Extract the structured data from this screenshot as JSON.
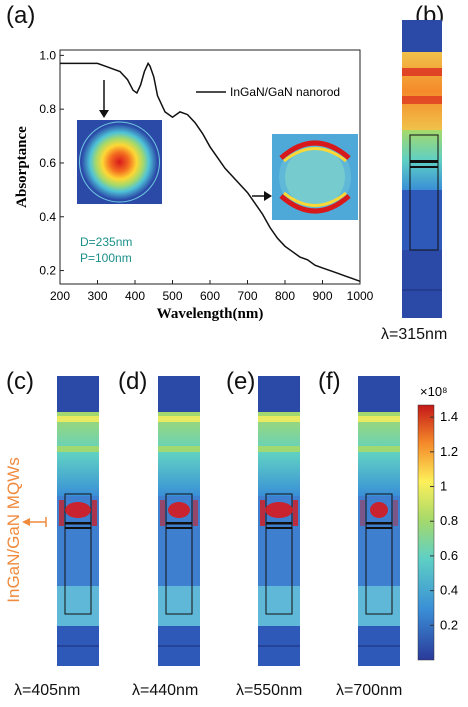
{
  "labels": {
    "a": "(a)",
    "b": "(b)",
    "c": "(c)",
    "d": "(d)",
    "e": "(e)",
    "f": "(f)"
  },
  "lambda_labels": {
    "b": "λ=315nm",
    "c": "λ=405nm",
    "d": "λ=440nm",
    "e": "λ=550nm",
    "f": "λ=700nm"
  },
  "side_label": "InGaN/GaN MQWs",
  "colors": {
    "accent_orange": "#f08a3c",
    "annotation_teal": "#1a8f8a",
    "field_blue": "#2b4aa8"
  },
  "chart_data": {
    "type": "line",
    "xlabel": "Wavelength(nm)",
    "ylabel": "Absorptance",
    "xlim": [
      200,
      1000
    ],
    "ylim": [
      0.15,
      1.02
    ],
    "xticks": [
      200,
      300,
      400,
      500,
      600,
      700,
      800,
      900,
      1000
    ],
    "yticks": [
      0.2,
      0.4,
      0.6,
      0.8,
      1.0
    ],
    "ytick_labels": [
      "0.2",
      "0.4",
      "0.6",
      "0.8",
      "1.0"
    ],
    "legend": "InGaN/GaN nanorod",
    "legend_position": "top-right",
    "annotations": [
      "D=235nm",
      "P=100nm"
    ],
    "series": [
      {
        "name": "InGaN/GaN nanorod",
        "x": [
          200,
          240,
          280,
          300,
          320,
          340,
          360,
          380,
          395,
          405,
          415,
          425,
          435,
          440,
          450,
          460,
          480,
          500,
          520,
          540,
          560,
          580,
          600,
          620,
          640,
          660,
          680,
          700,
          720,
          740,
          760,
          780,
          800,
          820,
          840,
          860,
          880,
          900,
          920,
          940,
          960,
          980,
          1000
        ],
        "y": [
          0.97,
          0.97,
          0.97,
          0.97,
          0.96,
          0.95,
          0.94,
          0.91,
          0.87,
          0.86,
          0.89,
          0.94,
          0.97,
          0.96,
          0.92,
          0.85,
          0.79,
          0.77,
          0.79,
          0.78,
          0.75,
          0.71,
          0.66,
          0.62,
          0.58,
          0.55,
          0.52,
          0.49,
          0.45,
          0.41,
          0.36,
          0.32,
          0.29,
          0.27,
          0.25,
          0.24,
          0.22,
          0.21,
          0.2,
          0.19,
          0.18,
          0.17,
          0.16
        ]
      }
    ],
    "colorbar": {
      "exponent_label": "×10⁸",
      "ticks": [
        "1.4",
        "1.2",
        "1",
        "0.8",
        "0.6",
        "0.4",
        "0.2"
      ]
    }
  }
}
